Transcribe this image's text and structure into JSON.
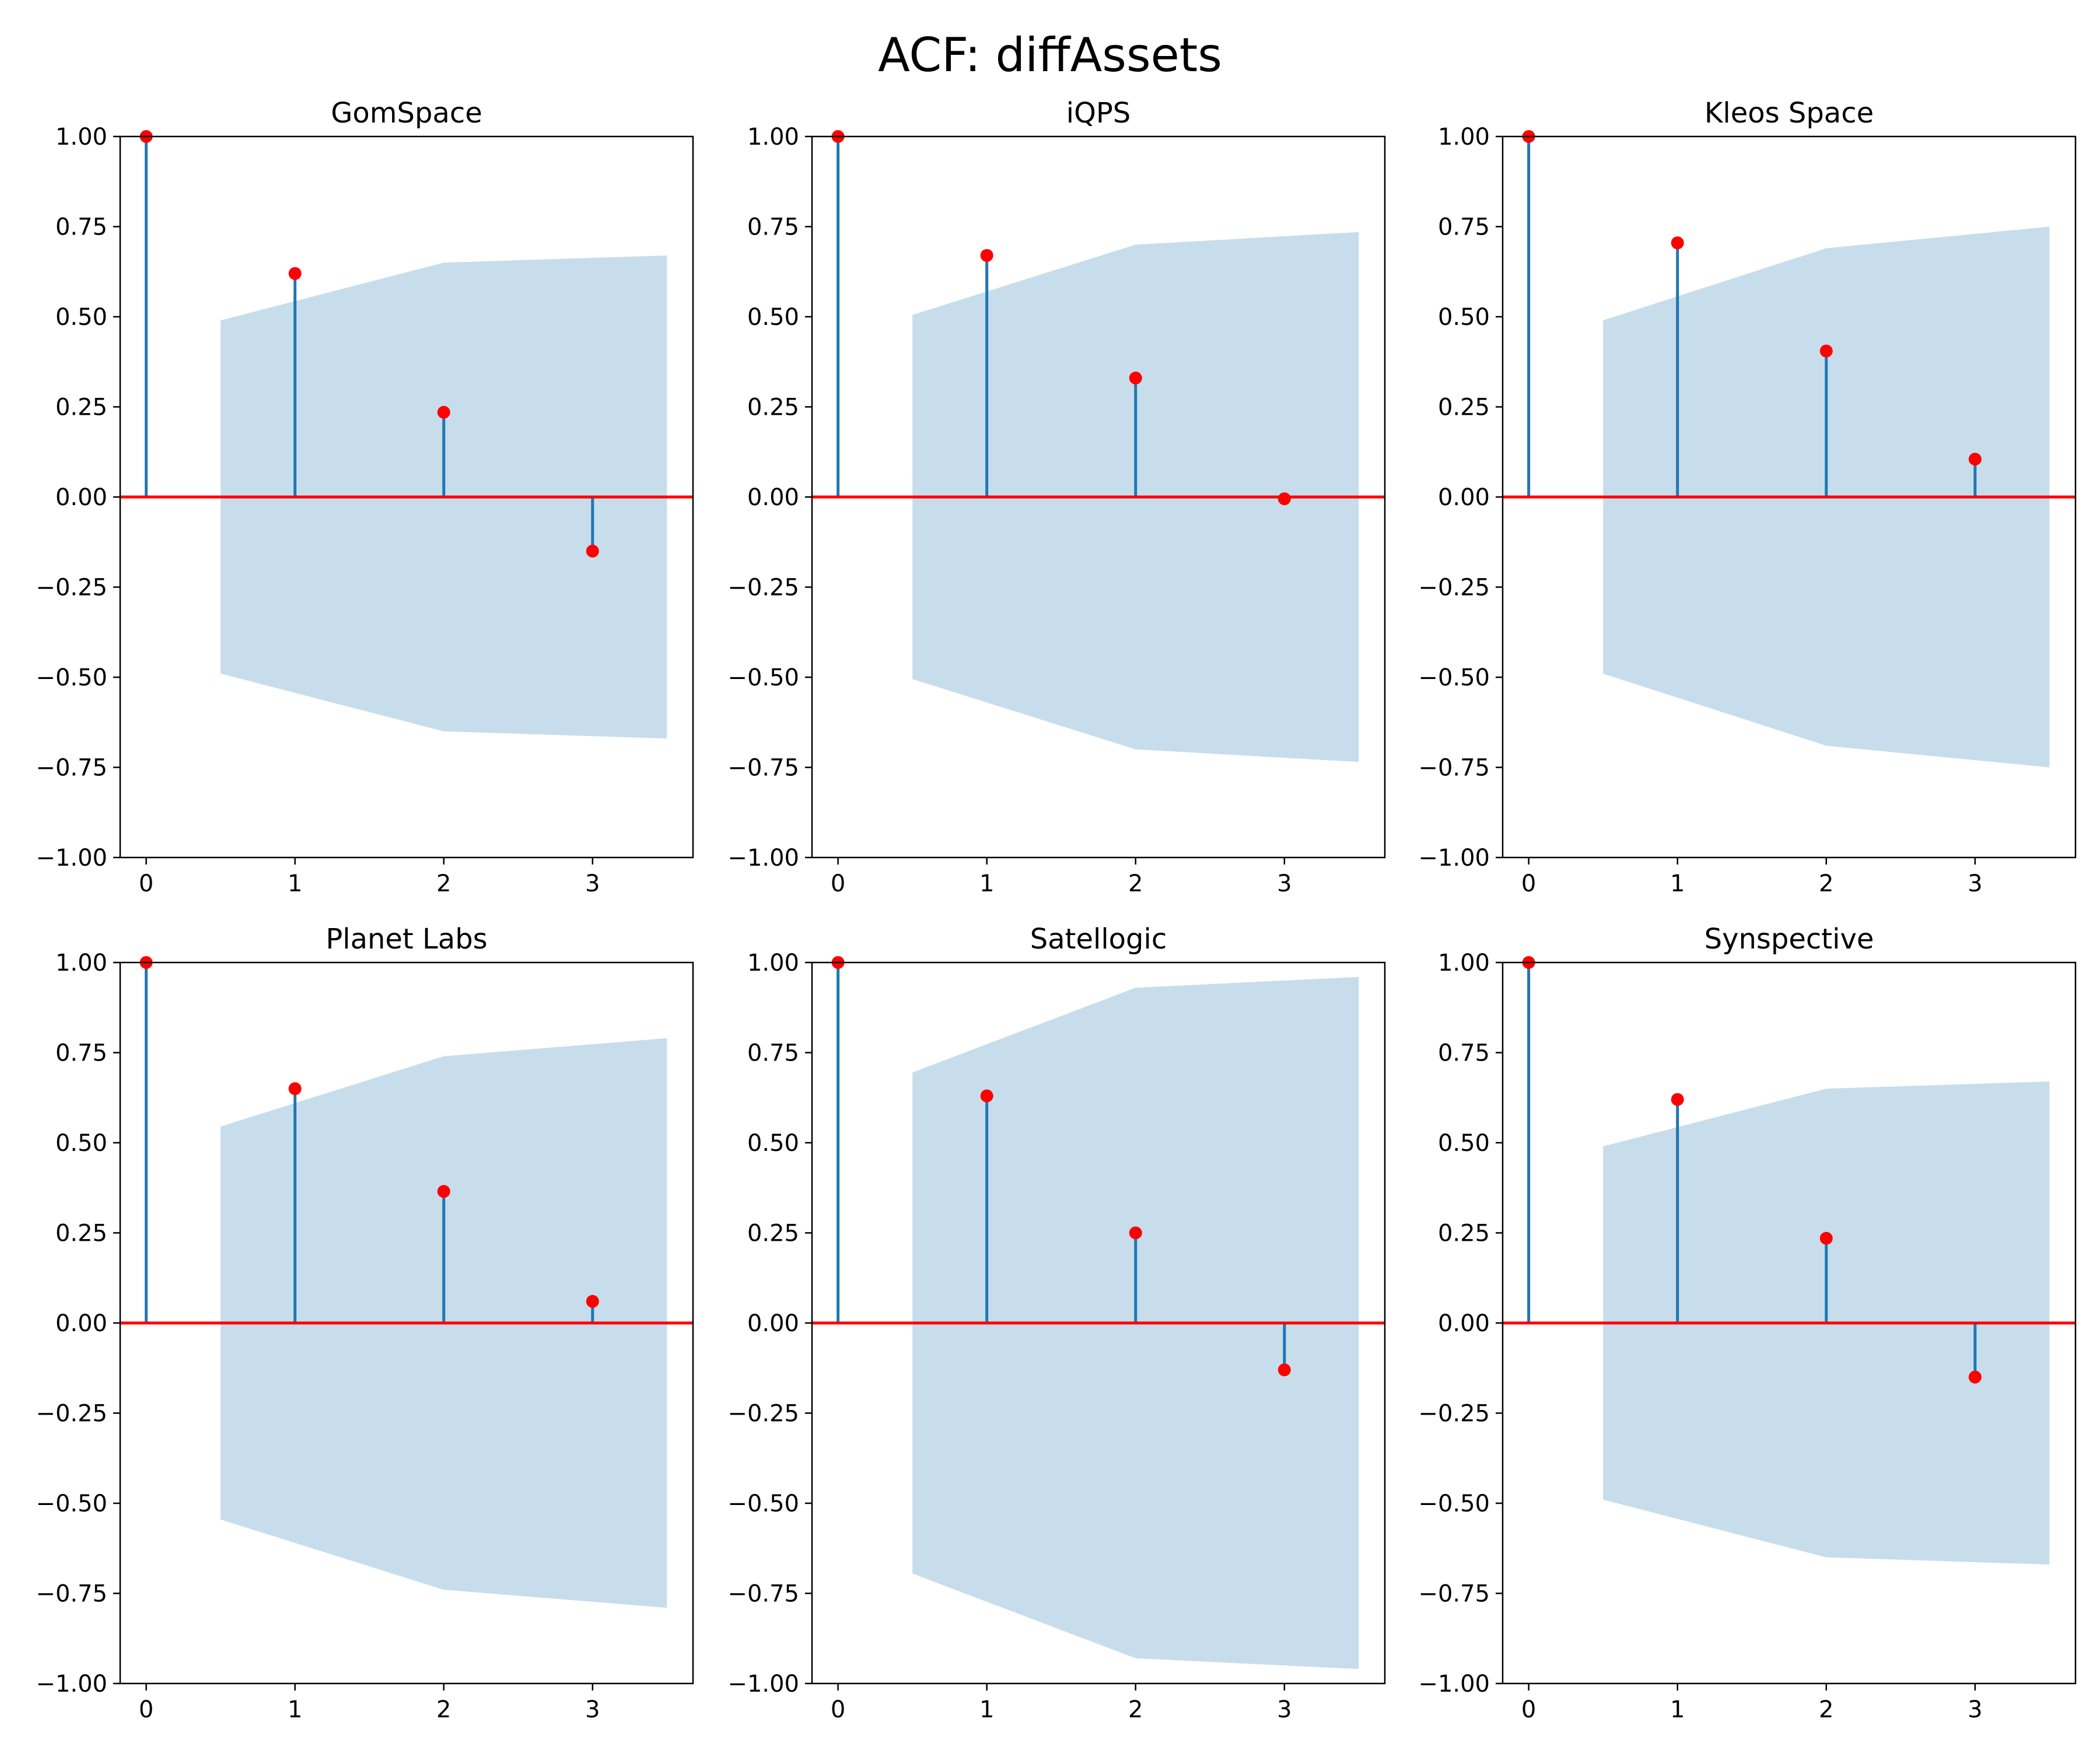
{
  "figure": {
    "title": "ACF: diffAssets"
  },
  "colors": {
    "stem": "#1f77b4",
    "marker": "#ff0000",
    "zero_line": "#ff0000",
    "confidence_band": "#1f77b4",
    "axes": "#000000"
  },
  "chart_data": [
    {
      "type": "scatter",
      "title": "GomSpace",
      "x": [
        0,
        1,
        2,
        3
      ],
      "values": [
        1.0,
        0.62,
        0.235,
        -0.15
      ],
      "confint": {
        "x": [
          0.5,
          2.0,
          3.5
        ],
        "upper": [
          0.49,
          0.65,
          0.67
        ],
        "lower": [
          -0.49,
          -0.65,
          -0.67
        ]
      },
      "xlim": [
        -0.175,
        3.675
      ],
      "ylim": [
        -1.0,
        1.0
      ],
      "xticks": [
        "0",
        "1",
        "2",
        "3"
      ],
      "yticks": [
        "1.00",
        "0.75",
        "0.50",
        "0.25",
        "0.00",
        "−0.25",
        "−0.50",
        "−0.75",
        "−1.00"
      ]
    },
    {
      "type": "scatter",
      "title": "iQPS",
      "x": [
        0,
        1,
        2,
        3
      ],
      "values": [
        1.0,
        0.67,
        0.33,
        -0.005
      ],
      "confint": {
        "x": [
          0.5,
          2.0,
          3.5
        ],
        "upper": [
          0.505,
          0.7,
          0.735
        ],
        "lower": [
          -0.505,
          -0.7,
          -0.735
        ]
      },
      "xlim": [
        -0.175,
        3.675
      ],
      "ylim": [
        -1.0,
        1.0
      ],
      "xticks": [
        "0",
        "1",
        "2",
        "3"
      ],
      "yticks": [
        "1.00",
        "0.75",
        "0.50",
        "0.25",
        "0.00",
        "−0.25",
        "−0.50",
        "−0.75",
        "−1.00"
      ]
    },
    {
      "type": "scatter",
      "title": "Kleos Space",
      "x": [
        0,
        1,
        2,
        3
      ],
      "values": [
        1.0,
        0.705,
        0.405,
        0.105
      ],
      "confint": {
        "x": [
          0.5,
          2.0,
          3.5
        ],
        "upper": [
          0.49,
          0.69,
          0.75
        ],
        "lower": [
          -0.49,
          -0.69,
          -0.75
        ]
      },
      "xlim": [
        -0.175,
        3.675
      ],
      "ylim": [
        -1.0,
        1.0
      ],
      "xticks": [
        "0",
        "1",
        "2",
        "3"
      ],
      "yticks": [
        "1.00",
        "0.75",
        "0.50",
        "0.25",
        "0.00",
        "−0.25",
        "−0.50",
        "−0.75",
        "−1.00"
      ]
    },
    {
      "type": "scatter",
      "title": "Planet Labs",
      "x": [
        0,
        1,
        2,
        3
      ],
      "values": [
        1.0,
        0.65,
        0.365,
        0.06
      ],
      "confint": {
        "x": [
          0.5,
          2.0,
          3.5
        ],
        "upper": [
          0.545,
          0.74,
          0.79
        ],
        "lower": [
          -0.545,
          -0.74,
          -0.79
        ]
      },
      "xlim": [
        -0.175,
        3.675
      ],
      "ylim": [
        -1.0,
        1.0
      ],
      "xticks": [
        "0",
        "1",
        "2",
        "3"
      ],
      "yticks": [
        "1.00",
        "0.75",
        "0.50",
        "0.25",
        "0.00",
        "−0.25",
        "−0.50",
        "−0.75",
        "−1.00"
      ]
    },
    {
      "type": "scatter",
      "title": "Satellogic",
      "x": [
        0,
        1,
        2,
        3
      ],
      "values": [
        1.0,
        0.63,
        0.25,
        -0.13
      ],
      "confint": {
        "x": [
          0.5,
          2.0,
          3.5
        ],
        "upper": [
          0.695,
          0.93,
          0.96
        ],
        "lower": [
          -0.695,
          -0.93,
          -0.96
        ]
      },
      "xlim": [
        -0.175,
        3.675
      ],
      "ylim": [
        -1.0,
        1.0
      ],
      "xticks": [
        "0",
        "1",
        "2",
        "3"
      ],
      "yticks": [
        "1.00",
        "0.75",
        "0.50",
        "0.25",
        "0.00",
        "−0.25",
        "−0.50",
        "−0.75",
        "−1.00"
      ]
    },
    {
      "type": "scatter",
      "title": "Synspective",
      "x": [
        0,
        1,
        2,
        3
      ],
      "values": [
        1.0,
        0.62,
        0.235,
        -0.15
      ],
      "confint": {
        "x": [
          0.5,
          2.0,
          3.5
        ],
        "upper": [
          0.49,
          0.65,
          0.67
        ],
        "lower": [
          -0.49,
          -0.65,
          -0.67
        ]
      },
      "xlim": [
        -0.175,
        3.675
      ],
      "ylim": [
        -1.0,
        1.0
      ],
      "xticks": [
        "0",
        "1",
        "2",
        "3"
      ],
      "yticks": [
        "1.00",
        "0.75",
        "0.50",
        "0.25",
        "0.00",
        "−0.25",
        "−0.50",
        "−0.75",
        "−1.00"
      ]
    }
  ]
}
